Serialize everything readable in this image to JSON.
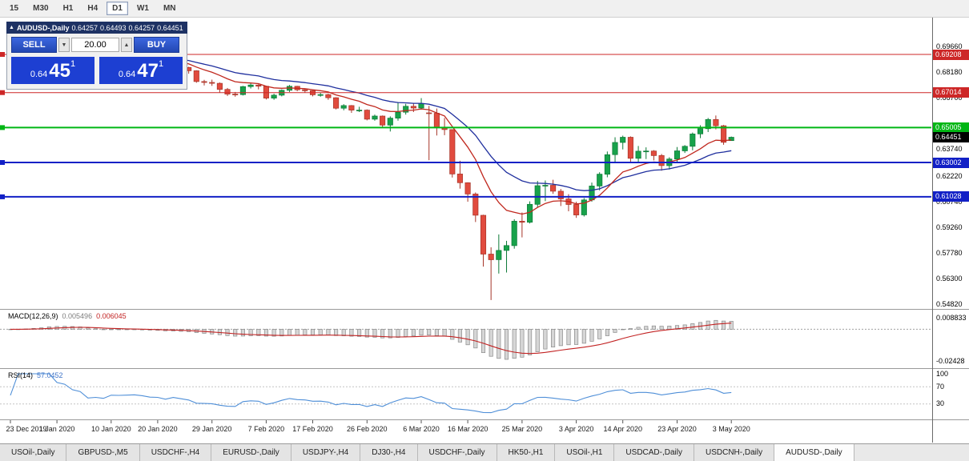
{
  "toolbar": {
    "timeframes": [
      {
        "label": "15",
        "active": false
      },
      {
        "label": "M30",
        "active": false
      },
      {
        "label": "H1",
        "active": false
      },
      {
        "label": "H4",
        "active": false
      },
      {
        "label": "D1",
        "active": true
      },
      {
        "label": "W1",
        "active": false
      },
      {
        "label": "MN",
        "active": false
      }
    ]
  },
  "chart": {
    "title": "AUDUSD-,Daily",
    "ohlc": {
      "open": "0.64257",
      "high": "0.64493",
      "low": "0.64257",
      "close": "0.64451"
    },
    "icons": {
      "collapse": "▲",
      "volume_up": "▲",
      "volume_down": "▼"
    }
  },
  "trade_panel": {
    "sell_label": "SELL",
    "buy_label": "BUY",
    "volume": "20.00",
    "bid": {
      "prefix": "0.64",
      "big": "45",
      "sup": "1"
    },
    "ask": {
      "prefix": "0.64",
      "big": "47",
      "sup": "1"
    }
  },
  "price_axis": {
    "regular": [
      "0.69660",
      "0.68180",
      "0.66700",
      "0.63740",
      "0.62220",
      "0.60740",
      "0.59260",
      "0.57780",
      "0.56300",
      "0.54820"
    ],
    "badges": [
      {
        "value": "0.69208",
        "color": "#cd2727"
      },
      {
        "value": "0.67014",
        "color": "#cd2727"
      },
      {
        "value": "0.65005",
        "color": "#00b614"
      },
      {
        "value": "0.64451",
        "color": "#000000"
      },
      {
        "value": "0.63002",
        "color": "#1220c6"
      },
      {
        "value": "0.61028",
        "color": "#1220c6"
      }
    ]
  },
  "indicators": {
    "macd": {
      "label": "MACD(12,26,9)",
      "main_value": "0.005496",
      "signal_value": "0.006045",
      "axis": [
        "0.008833",
        "-0.02428"
      ],
      "params": {
        "fast": 12,
        "slow": 26,
        "signal": 9
      }
    },
    "rsi": {
      "label": "RSI(14)",
      "value": "57.0452",
      "axis": [
        "100",
        "70",
        "30"
      ],
      "levels": [
        70,
        30
      ],
      "period": 14
    }
  },
  "tabs": [
    {
      "label": "USOil-,Daily",
      "active": false
    },
    {
      "label": "GBPUSD-,M5",
      "active": false
    },
    {
      "label": "USDCHF-,H4",
      "active": false
    },
    {
      "label": "EURUSD-,Daily",
      "active": false
    },
    {
      "label": "USDJPY-,H4",
      "active": false
    },
    {
      "label": "DJ30-,H4",
      "active": false
    },
    {
      "label": "USDCHF-,Daily",
      "active": false
    },
    {
      "label": "HK50-,H1",
      "active": false
    },
    {
      "label": "USOil-,H1",
      "active": false
    },
    {
      "label": "USDCAD-,Daily",
      "active": false
    },
    {
      "label": "USDCNH-,Daily",
      "active": false
    },
    {
      "label": "AUDUSD-,Daily",
      "active": true
    }
  ],
  "chart_data": {
    "type": "candlestick",
    "symbol": "AUDUSD-",
    "timeframe": "Daily",
    "current_price": 0.64451,
    "colors": {
      "up": "#18a24b",
      "up_border": "#0d7a37",
      "down": "#e14b3e",
      "down_border": "#a63529",
      "ma_fast": "#c0281e",
      "ma_slow": "#1f2f9e",
      "macd_hist": "#d6d6d6",
      "macd_hist_border": "#8a8a8a",
      "macd_signal": "#c22222",
      "rsi": "#4f8fd8"
    },
    "hlines": [
      {
        "price": 0.69208,
        "color": "#cd2727",
        "width": 1
      },
      {
        "price": 0.67014,
        "color": "#cd2727",
        "width": 1
      },
      {
        "price": 0.65005,
        "color": "#00b614",
        "width": 2
      },
      {
        "price": 0.63002,
        "color": "#1220c6",
        "width": 2
      },
      {
        "price": 0.61028,
        "color": "#1220c6",
        "width": 2
      }
    ],
    "moving_averages": [
      {
        "type": "ema",
        "period": 10,
        "color_key": "ma_fast"
      },
      {
        "type": "ema",
        "period": 21,
        "color_key": "ma_slow"
      }
    ],
    "date_labels": [
      [
        "23 Dec 2019",
        0
      ],
      [
        "1 Jan 2020",
        6
      ],
      [
        "10 Jan 2020",
        13
      ],
      [
        "20 Jan 2020",
        19
      ],
      [
        "29 Jan 2020",
        26
      ],
      [
        "7 Feb 2020",
        33
      ],
      [
        "17 Feb 2020",
        39
      ],
      [
        "26 Feb 2020",
        46
      ],
      [
        "6 Mar 2020",
        53
      ],
      [
        "16 Mar 2020",
        59
      ],
      [
        "25 Mar 2020",
        66
      ],
      [
        "3 Apr 2020",
        73
      ],
      [
        "14 Apr 2020",
        79
      ],
      [
        "23 Apr 2020",
        86
      ],
      [
        "3 May 2020",
        93
      ]
    ],
    "candles": [
      [
        0.6895,
        0.691,
        0.688,
        0.6899
      ],
      [
        0.6899,
        0.6917,
        0.6892,
        0.6908
      ],
      [
        0.6908,
        0.6932,
        0.6903,
        0.6926
      ],
      [
        0.6926,
        0.696,
        0.692,
        0.6954
      ],
      [
        0.6954,
        0.699,
        0.6948,
        0.6985
      ],
      [
        0.6985,
        0.7032,
        0.698,
        0.7021
      ],
      [
        0.7021,
        0.7025,
        0.6985,
        0.699
      ],
      [
        0.699,
        0.7,
        0.697,
        0.6982
      ],
      [
        0.6982,
        0.6995,
        0.694,
        0.695
      ],
      [
        0.695,
        0.696,
        0.6925,
        0.6936
      ],
      [
        0.6936,
        0.694,
        0.685,
        0.6865
      ],
      [
        0.6865,
        0.688,
        0.6855,
        0.6873
      ],
      [
        0.6873,
        0.6885,
        0.6849,
        0.6858
      ],
      [
        0.6858,
        0.6905,
        0.6855,
        0.6901
      ],
      [
        0.6901,
        0.691,
        0.6885,
        0.6899
      ],
      [
        0.6899,
        0.692,
        0.689,
        0.6903
      ],
      [
        0.6903,
        0.692,
        0.6895,
        0.6907
      ],
      [
        0.6907,
        0.691,
        0.6885,
        0.6896
      ],
      [
        0.6896,
        0.69,
        0.687,
        0.6875
      ],
      [
        0.6875,
        0.6885,
        0.686,
        0.6872
      ],
      [
        0.6872,
        0.6878,
        0.6835,
        0.6845
      ],
      [
        0.6845,
        0.688,
        0.684,
        0.6865
      ],
      [
        0.6865,
        0.687,
        0.683,
        0.6846
      ],
      [
        0.6846,
        0.685,
        0.681,
        0.6827
      ],
      [
        0.6827,
        0.683,
        0.6758,
        0.6765
      ],
      [
        0.6765,
        0.6775,
        0.6743,
        0.676
      ],
      [
        0.676,
        0.6776,
        0.674,
        0.6755
      ],
      [
        0.6755,
        0.676,
        0.67,
        0.672
      ],
      [
        0.672,
        0.6728,
        0.6682,
        0.6693
      ],
      [
        0.6693,
        0.6705,
        0.6678,
        0.669
      ],
      [
        0.669,
        0.674,
        0.6685,
        0.6736
      ],
      [
        0.6736,
        0.6755,
        0.6725,
        0.6745
      ],
      [
        0.6745,
        0.675,
        0.672,
        0.6738
      ],
      [
        0.6738,
        0.674,
        0.6662,
        0.667
      ],
      [
        0.667,
        0.6695,
        0.666,
        0.6687
      ],
      [
        0.6687,
        0.672,
        0.668,
        0.6715
      ],
      [
        0.6715,
        0.6745,
        0.6705,
        0.6738
      ],
      [
        0.6738,
        0.674,
        0.671,
        0.6718
      ],
      [
        0.6718,
        0.6725,
        0.67,
        0.6712
      ],
      [
        0.6712,
        0.6715,
        0.668,
        0.6689
      ],
      [
        0.6689,
        0.67,
        0.6678,
        0.669
      ],
      [
        0.669,
        0.6695,
        0.666,
        0.6672
      ],
      [
        0.6672,
        0.6675,
        0.6605,
        0.6612
      ],
      [
        0.6612,
        0.6635,
        0.66,
        0.6627
      ],
      [
        0.6627,
        0.663,
        0.6585,
        0.6601
      ],
      [
        0.6601,
        0.662,
        0.659,
        0.6601
      ],
      [
        0.6601,
        0.6605,
        0.6542,
        0.6549
      ],
      [
        0.6549,
        0.6575,
        0.654,
        0.6567
      ],
      [
        0.6567,
        0.657,
        0.6505,
        0.6515
      ],
      [
        0.6515,
        0.6565,
        0.6478,
        0.6555
      ],
      [
        0.6555,
        0.6646,
        0.654,
        0.6589
      ],
      [
        0.6589,
        0.6637,
        0.6575,
        0.6623
      ],
      [
        0.6623,
        0.664,
        0.659,
        0.6613
      ],
      [
        0.6613,
        0.667,
        0.6603,
        0.6639
      ],
      [
        0.6585,
        0.6625,
        0.6313,
        0.6583
      ],
      [
        0.6583,
        0.661,
        0.6455,
        0.6502
      ],
      [
        0.6502,
        0.6556,
        0.6457,
        0.6489
      ],
      [
        0.6489,
        0.649,
        0.6214,
        0.6234
      ],
      [
        0.6234,
        0.631,
        0.615,
        0.6184
      ],
      [
        0.6184,
        0.6186,
        0.6075,
        0.6119
      ],
      [
        0.6119,
        0.6128,
        0.5958,
        0.5997
      ],
      [
        0.5997,
        0.6,
        0.5702,
        0.5774
      ],
      [
        0.5774,
        0.5813,
        0.551,
        0.5742
      ],
      [
        0.5742,
        0.5887,
        0.5662,
        0.5795
      ],
      [
        0.5795,
        0.585,
        0.5668,
        0.5823
      ],
      [
        0.5823,
        0.5974,
        0.5805,
        0.5963
      ],
      [
        0.5963,
        0.6013,
        0.587,
        0.5957
      ],
      [
        0.5957,
        0.6077,
        0.595,
        0.606
      ],
      [
        0.606,
        0.6194,
        0.6042,
        0.6167
      ],
      [
        0.6167,
        0.6197,
        0.6078,
        0.6169
      ],
      [
        0.6169,
        0.6201,
        0.612,
        0.6135
      ],
      [
        0.6135,
        0.6148,
        0.605,
        0.6091
      ],
      [
        0.6091,
        0.6118,
        0.602,
        0.6059
      ],
      [
        0.6059,
        0.6075,
        0.5982,
        0.5999
      ],
      [
        0.5999,
        0.6096,
        0.599,
        0.6085
      ],
      [
        0.6085,
        0.6185,
        0.6075,
        0.6165
      ],
      [
        0.6165,
        0.6244,
        0.614,
        0.6233
      ],
      [
        0.6233,
        0.6363,
        0.6215,
        0.6345
      ],
      [
        0.6345,
        0.6445,
        0.63,
        0.6415
      ],
      [
        0.6415,
        0.6454,
        0.6375,
        0.6445
      ],
      [
        0.6445,
        0.645,
        0.6302,
        0.6324
      ],
      [
        0.6324,
        0.6395,
        0.63,
        0.6365
      ],
      [
        0.6365,
        0.6387,
        0.632,
        0.6366
      ],
      [
        0.6366,
        0.6371,
        0.6312,
        0.634
      ],
      [
        0.634,
        0.6349,
        0.6253,
        0.6282
      ],
      [
        0.6282,
        0.633,
        0.626,
        0.632
      ],
      [
        0.632,
        0.6389,
        0.6305,
        0.6367
      ],
      [
        0.6367,
        0.64,
        0.6355,
        0.6393
      ],
      [
        0.6393,
        0.6472,
        0.637,
        0.6464
      ],
      [
        0.6464,
        0.6514,
        0.644,
        0.6494
      ],
      [
        0.6494,
        0.6556,
        0.6475,
        0.6547
      ],
      [
        0.6547,
        0.657,
        0.649,
        0.6511
      ],
      [
        0.6511,
        0.6516,
        0.6402,
        0.6416
      ],
      [
        0.64257,
        0.64493,
        0.64257,
        0.64451
      ]
    ]
  }
}
